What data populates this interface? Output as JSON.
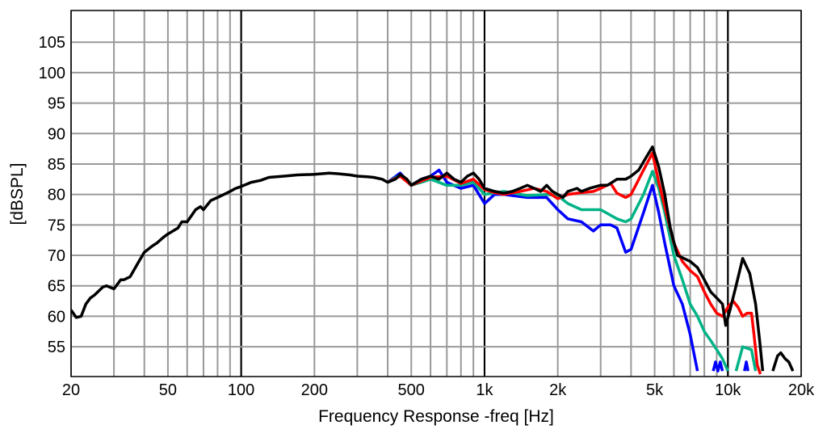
{
  "chart_data": {
    "type": "line",
    "title": "",
    "xlabel": "Frequency Response -freq [Hz]",
    "ylabel": "[dBSPL]",
    "xscale": "log",
    "xlim": [
      20,
      20000
    ],
    "ylim": [
      50.1,
      110.2
    ],
    "grid": true,
    "x_ticks": [
      {
        "v": 20,
        "label": "20"
      },
      {
        "v": 50,
        "label": "50"
      },
      {
        "v": 100,
        "label": "100"
      },
      {
        "v": 200,
        "label": "200"
      },
      {
        "v": 500,
        "label": "500"
      },
      {
        "v": 1000,
        "label": "1k"
      },
      {
        "v": 2000,
        "label": "2k"
      },
      {
        "v": 5000,
        "label": "5k"
      },
      {
        "v": 10000,
        "label": "10k"
      },
      {
        "v": 20000,
        "label": "20k"
      }
    ],
    "y_ticks": [
      {
        "v": 55,
        "label": "55"
      },
      {
        "v": 60,
        "label": "60"
      },
      {
        "v": 65,
        "label": "65"
      },
      {
        "v": 70,
        "label": "70"
      },
      {
        "v": 75,
        "label": "75"
      },
      {
        "v": 80,
        "label": "80"
      },
      {
        "v": 85,
        "label": "85"
      },
      {
        "v": 90,
        "label": "90"
      },
      {
        "v": 95,
        "label": "95"
      },
      {
        "v": 100,
        "label": "100"
      },
      {
        "v": 105,
        "label": "105"
      }
    ],
    "series": [
      {
        "name": "blue",
        "color": "#0000ff",
        "x": [
          400,
          450,
          500,
          550,
          600,
          650,
          700,
          800,
          900,
          1000,
          1100,
          1200,
          1500,
          1800,
          2000,
          2200,
          2500,
          2800,
          3000,
          3300,
          3500,
          3800,
          4000,
          4500,
          4900,
          5200,
          5500,
          6000,
          6500,
          7000,
          7500,
          null,
          8700,
          8900,
          9100,
          9300,
          9500,
          null,
          11700,
          11900,
          12100
        ],
        "y": [
          82,
          83.5,
          81.5,
          82.5,
          83,
          84,
          82,
          81,
          81.5,
          78.5,
          80,
          80,
          79.5,
          79.5,
          77.5,
          76,
          75.5,
          74,
          75,
          75,
          74.5,
          70.5,
          71,
          77,
          81.5,
          77,
          72,
          65,
          62,
          57,
          51,
          null,
          51,
          52.5,
          51,
          52.5,
          51,
          null,
          51,
          52.5,
          51
        ]
      },
      {
        "name": "green",
        "color": "#00b386",
        "x": [
          400,
          450,
          500,
          550,
          600,
          700,
          800,
          900,
          1000,
          1200,
          1500,
          1800,
          2000,
          2200,
          2500,
          3000,
          3500,
          3800,
          4000,
          4500,
          4900,
          5200,
          5500,
          6000,
          6500,
          7000,
          7500,
          8000,
          8500,
          9000,
          9500,
          10000,
          null,
          10800,
          11500,
          12500,
          13000
        ],
        "y": [
          82,
          83.2,
          81.5,
          82,
          82.5,
          81.5,
          81.5,
          82,
          80,
          80.5,
          79.8,
          80,
          79.8,
          78.5,
          77.5,
          77.5,
          76,
          75.5,
          76,
          80,
          83.8,
          81,
          77,
          70,
          66,
          62,
          60,
          57.5,
          56,
          54.5,
          53,
          51,
          null,
          51,
          55,
          54.5,
          51
        ]
      },
      {
        "name": "red",
        "color": "#ff0000",
        "x": [
          400,
          450,
          500,
          550,
          600,
          700,
          800,
          900,
          1000,
          1100,
          1200,
          1400,
          1600,
          1800,
          2000,
          2200,
          2500,
          2800,
          3000,
          3300,
          3500,
          3800,
          4000,
          4500,
          4900,
          5200,
          5500,
          6000,
          6500,
          7000,
          7500,
          8000,
          8500,
          9000,
          9500,
          10000,
          10500,
          11000,
          11500,
          12000,
          12500,
          12800,
          13200,
          13600
        ],
        "y": [
          82,
          83,
          81.5,
          82.2,
          82.8,
          83,
          81.8,
          82.5,
          80.8,
          80.3,
          80,
          80.5,
          81,
          80.5,
          79.3,
          80,
          80.3,
          80.5,
          81,
          81.8,
          80.2,
          79.5,
          80,
          84,
          86.8,
          82,
          78,
          72,
          69,
          67.5,
          66.5,
          64,
          62,
          60.5,
          60,
          61.5,
          62.5,
          61.5,
          60,
          60.5,
          60.5,
          57,
          52,
          50.5
        ]
      },
      {
        "name": "black",
        "color": "#000000",
        "x": [
          20,
          21,
          22,
          23,
          24,
          25,
          27,
          28,
          30,
          32,
          33,
          35,
          38,
          40,
          43,
          45,
          48,
          50,
          55,
          57,
          60,
          65,
          68,
          70,
          75,
          80,
          85,
          90,
          95,
          100,
          110,
          120,
          130,
          150,
          170,
          200,
          230,
          250,
          280,
          300,
          330,
          350,
          380,
          400,
          430,
          450,
          480,
          500,
          550,
          600,
          650,
          700,
          750,
          800,
          850,
          900,
          950,
          1000,
          1100,
          1200,
          1300,
          1400,
          1500,
          1600,
          1700,
          1800,
          1900,
          2000,
          2100,
          2200,
          2400,
          2500,
          2700,
          3000,
          3200,
          3500,
          3800,
          4000,
          4300,
          4600,
          4900,
          5200,
          5500,
          5800,
          6200,
          6600,
          7000,
          7500,
          8000,
          8500,
          9000,
          9500,
          9800,
          10200,
          10800,
          11500,
          12300,
          13000,
          13500,
          13900,
          null,
          15300,
          16000,
          16500,
          17200,
          17800,
          18500
        ],
        "y": [
          61,
          59.8,
          60,
          62,
          63,
          63.5,
          64.8,
          65,
          64.5,
          66,
          66,
          66.5,
          69,
          70.5,
          71.5,
          72,
          73,
          73.5,
          74.5,
          75.5,
          75.5,
          77.5,
          78,
          77.5,
          79,
          79.5,
          80,
          80.5,
          81,
          81.3,
          82,
          82.3,
          82.8,
          83,
          83.2,
          83.3,
          83.5,
          83.4,
          83.2,
          83,
          82.9,
          82.8,
          82.5,
          82,
          82.5,
          83.3,
          82.5,
          81.5,
          82.5,
          83,
          82.5,
          83.5,
          82.5,
          82,
          83,
          83.5,
          82.5,
          81,
          80.5,
          80.2,
          80.5,
          81,
          81.5,
          81,
          80.5,
          81.5,
          80.5,
          80,
          79.5,
          80.5,
          81,
          80.5,
          81,
          81.5,
          81.5,
          82.5,
          82.5,
          83,
          84,
          86,
          87.8,
          84.5,
          80,
          74.5,
          70,
          69.5,
          69,
          68,
          66,
          64,
          63,
          62,
          58.5,
          61,
          65,
          69.5,
          67,
          62,
          56,
          51,
          null,
          51,
          53.5,
          54,
          53,
          52.5,
          51
        ]
      }
    ]
  }
}
